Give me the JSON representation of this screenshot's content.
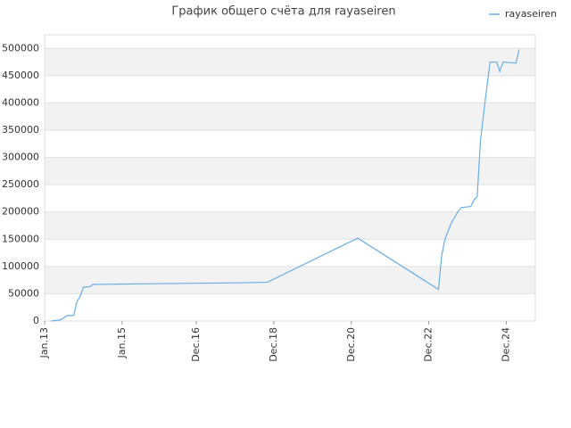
{
  "chart_data": {
    "type": "line",
    "title": "График общего счёта для rayaseiren",
    "x": [
      "2013-03",
      "2013-06",
      "2013-08",
      "2013-10",
      "2013-11",
      "2013-12",
      "2014-01",
      "2014-03",
      "2014-04",
      "2015-04",
      "2016-08",
      "2018-01",
      "2018-10",
      "2021-02",
      "2023-03",
      "2023-04",
      "2023-05",
      "2023-07",
      "2023-09",
      "2023-10",
      "2024-01",
      "2024-02",
      "2024-03",
      "2024-04",
      "2024-06",
      "2024-07",
      "2024-09",
      "2024-10",
      "2024-11",
      "2025-03",
      "2025-04"
    ],
    "series": [
      {
        "name": "rayaseiren",
        "color": "#6aaee8",
        "values": [
          0,
          2000,
          10000,
          10000,
          35000,
          45000,
          62000,
          63000,
          67000,
          68000,
          69000,
          70000,
          71000,
          152000,
          58000,
          120000,
          150000,
          180000,
          200000,
          208000,
          210000,
          222000,
          228000,
          330000,
          430000,
          475000,
          475000,
          458000,
          475000,
          473000,
          498000
        ]
      }
    ],
    "xlim": [
      "2013-01",
      "2025-09"
    ],
    "xticks": [
      {
        "value": "2013-01",
        "label": "Jan.13"
      },
      {
        "value": "2015-01",
        "label": "Jan.15"
      },
      {
        "value": "2016-12",
        "label": "Dec.16"
      },
      {
        "value": "2018-12",
        "label": "Dec.18"
      },
      {
        "value": "2020-12",
        "label": "Dec.20"
      },
      {
        "value": "2022-12",
        "label": "Dec.22"
      },
      {
        "value": "2024-12",
        "label": "Dec.24"
      }
    ],
    "ylim": [
      0,
      525000
    ],
    "yticks": [
      0,
      50000,
      100000,
      150000,
      200000,
      250000,
      300000,
      350000,
      400000,
      450000,
      500000
    ],
    "grid": true,
    "legend": "top-right"
  }
}
